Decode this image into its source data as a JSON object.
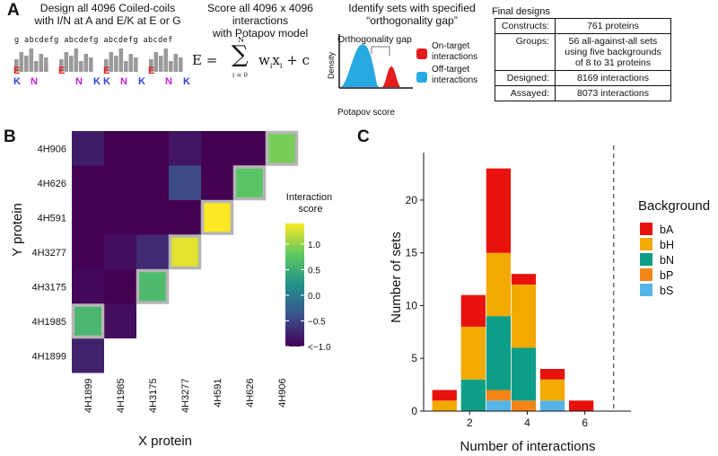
{
  "panels": {
    "a_letter": "A",
    "b_letter": "B",
    "c_letter": "C"
  },
  "panel_a": {
    "step1_title": "Design all 4096 Coiled-coils\nwith I/N at A and E/K at E or G",
    "step2_title": "Score all 4096 x 4096 interactions\nwith Potapov model",
    "step3_title": "Identify sets with specified\n“orthogonality gap”",
    "step4_title": "Final designs",
    "heptads": [
      {
        "prefix": "g ",
        "body": "abcdefg"
      },
      {
        "prefix": "",
        "body": "abcdefg"
      },
      {
        "prefix": "",
        "body": "abcdefg"
      },
      {
        "prefix": "",
        "body": "abcdef"
      }
    ],
    "logo_letters": [
      {
        "top": "E",
        "bottom": "K",
        "mid": [
          "N"
        ],
        "mid_right": ""
      },
      {
        "top": "E",
        "bottom": "",
        "mid": [
          "N"
        ],
        "mid_right": "K"
      },
      {
        "top": "E",
        "bottom": "K",
        "mid": [
          "N"
        ],
        "mid_right": "K"
      },
      {
        "top": "E",
        "bottom": "",
        "mid": [
          "N"
        ],
        "mid_right": "K"
      }
    ],
    "equation": {
      "lhs": "E = ",
      "upper": "N",
      "lower": "i = 0",
      "term": "w",
      "term_sub": "i",
      "term2": "x",
      "term2_sub": "i",
      "tail": " + c"
    },
    "density_plot": {
      "gap_label": "Orthogonality gap",
      "ylabel": "Density",
      "xlabel": "Potapov score",
      "legend": [
        {
          "label": "On-target\ninteractions",
          "color": "#e41a1c"
        },
        {
          "label": "Off-target\ninteractions",
          "color": "#29a9e1"
        }
      ]
    },
    "final_table": [
      {
        "key": "Constructs:",
        "value": "761 proteins"
      },
      {
        "key": "Groups:",
        "value": "56 all-against-all sets using five backgrounds of 8 to 31 proteins"
      },
      {
        "key": "Designed:",
        "value": "8169 interactions"
      },
      {
        "key": "Assayed:",
        "value": "8073 interactions"
      }
    ]
  },
  "chart_data": [
    {
      "type": "heatmap",
      "xlabel": "X protein",
      "ylabel": "Y protein",
      "proteins": [
        "4H1899",
        "4H1985",
        "4H3175",
        "4H3277",
        "4H591",
        "4H626",
        "4H906"
      ],
      "colorbar_title": "Interaction\nscore",
      "colorbar_ticks": [
        "1.0",
        "0.5",
        "0.0",
        "−0.5",
        "<−1.0"
      ],
      "colorbar_values": [
        1.0,
        0.5,
        0.0,
        -0.5,
        -1.0
      ],
      "value_range": [
        -1.0,
        1.4
      ],
      "cells": [
        {
          "x": "4H1899",
          "y": "4H906",
          "v": -0.8
        },
        {
          "x": "4H1985",
          "y": "4H906",
          "v": -1.0
        },
        {
          "x": "4H3175",
          "y": "4H906",
          "v": -1.0
        },
        {
          "x": "4H3277",
          "y": "4H906",
          "v": -0.85
        },
        {
          "x": "4H591",
          "y": "4H906",
          "v": -1.0
        },
        {
          "x": "4H626",
          "y": "4H906",
          "v": -1.0
        },
        {
          "x": "4H906",
          "y": "4H906",
          "v": 0.9,
          "on_target": true
        },
        {
          "x": "4H1899",
          "y": "4H626",
          "v": -1.0
        },
        {
          "x": "4H1985",
          "y": "4H626",
          "v": -1.0
        },
        {
          "x": "4H3175",
          "y": "4H626",
          "v": -1.0
        },
        {
          "x": "4H3277",
          "y": "4H626",
          "v": -0.45
        },
        {
          "x": "4H591",
          "y": "4H626",
          "v": -1.0
        },
        {
          "x": "4H626",
          "y": "4H626",
          "v": 0.75,
          "on_target": true
        },
        {
          "x": "4H1899",
          "y": "4H591",
          "v": -1.0
        },
        {
          "x": "4H1985",
          "y": "4H591",
          "v": -1.0
        },
        {
          "x": "4H3175",
          "y": "4H591",
          "v": -1.0
        },
        {
          "x": "4H3277",
          "y": "4H591",
          "v": -1.0
        },
        {
          "x": "4H591",
          "y": "4H591",
          "v": 1.4,
          "on_target": true
        },
        {
          "x": "4H1899",
          "y": "4H3277",
          "v": -1.0
        },
        {
          "x": "4H1985",
          "y": "4H3277",
          "v": -0.9
        },
        {
          "x": "4H3175",
          "y": "4H3277",
          "v": -0.7
        },
        {
          "x": "4H3277",
          "y": "4H3277",
          "v": 1.3,
          "on_target": true
        },
        {
          "x": "4H1899",
          "y": "4H3175",
          "v": -0.95
        },
        {
          "x": "4H1985",
          "y": "4H3175",
          "v": -1.0
        },
        {
          "x": "4H3175",
          "y": "4H3175",
          "v": 0.65,
          "on_target": true
        },
        {
          "x": "4H1899",
          "y": "4H1985",
          "v": 0.6,
          "on_target": true
        },
        {
          "x": "4H1985",
          "y": "4H1985",
          "v": -0.9
        },
        {
          "x": "4H1899",
          "y": "4H1899",
          "v": -0.75
        }
      ]
    },
    {
      "type": "bar",
      "stacked": true,
      "xlabel": "Number of interactions",
      "ylabel": "Number of sets",
      "x_ticks": [
        2,
        4,
        6
      ],
      "y_ticks": [
        0,
        5,
        10,
        15,
        20
      ],
      "xlim": [
        0.4,
        7.6
      ],
      "ylim": [
        0,
        24.5
      ],
      "bin_width": 0.85,
      "dashed_vline_x": 7,
      "legend_title": "Background",
      "series": [
        {
          "name": "bS",
          "color": "#56b4e9",
          "values": [
            0,
            0,
            1,
            0,
            1,
            0
          ]
        },
        {
          "name": "bP",
          "color": "#f58518",
          "values": [
            0,
            0,
            1,
            1,
            0,
            0
          ]
        },
        {
          "name": "bN",
          "color": "#0e9e87",
          "values": [
            0,
            3,
            7,
            5,
            0,
            0
          ]
        },
        {
          "name": "bH",
          "color": "#f2a900",
          "values": [
            1,
            5,
            6,
            6,
            2,
            0
          ]
        },
        {
          "name": "bA",
          "color": "#e8120c",
          "values": [
            1,
            3,
            8,
            1,
            1,
            1
          ]
        }
      ],
      "bin_centers": [
        1.125,
        2.125,
        3.0,
        3.875,
        4.875,
        5.875
      ],
      "legend_order": [
        "bA",
        "bH",
        "bN",
        "bP",
        "bS"
      ]
    }
  ]
}
